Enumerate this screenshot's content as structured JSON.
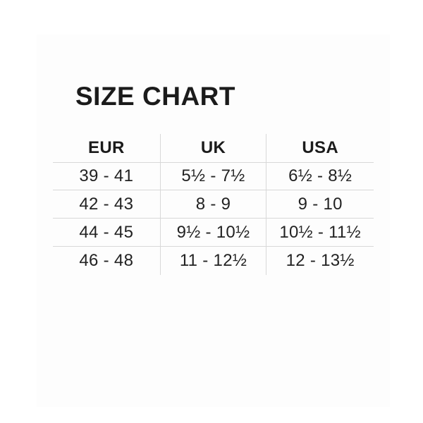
{
  "title": "SIZE CHART",
  "table": {
    "headers": [
      "EUR",
      "UK",
      "USA"
    ],
    "rows": [
      [
        "39 - 41",
        "5½ - 7½",
        "6½ - 8½"
      ],
      [
        "42 - 43",
        "8 - 9",
        "9 - 10"
      ],
      [
        "44 - 45",
        "9½ - 10½",
        "10½ - 11½"
      ],
      [
        "46 - 48",
        "11 - 12½",
        "12 - 13½"
      ]
    ]
  },
  "colors": {
    "background": "#ffffff",
    "text": "#1b1b1b",
    "grid_line": "#d8d8d8"
  },
  "chart_data": {
    "type": "table",
    "title": "SIZE CHART",
    "columns": [
      "EUR",
      "UK",
      "USA"
    ],
    "rows": [
      [
        "39 - 41",
        "5½ - 7½",
        "6½ - 8½"
      ],
      [
        "42 - 43",
        "8 - 9",
        "9 - 10"
      ],
      [
        "44 - 45",
        "9½ - 10½",
        "10½ - 11½"
      ],
      [
        "46 - 48",
        "11 - 12½",
        "12 - 13½"
      ]
    ],
    "layout": {
      "grid": "inner-lines-only",
      "header_style": "bold",
      "outer_border": false
    }
  }
}
